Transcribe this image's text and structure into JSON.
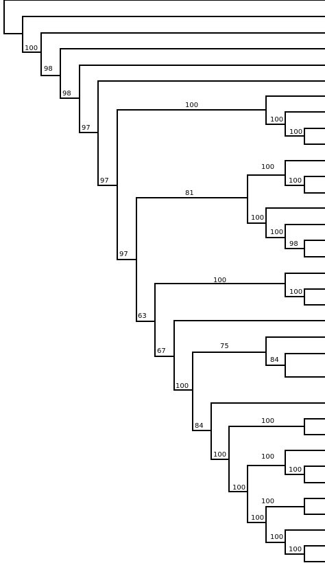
{
  "tree": {
    "line_color": "#000000",
    "supports": {
      "n33": "100",
      "n60": "98",
      "n88": "98",
      "n116": "97",
      "n143": "97",
      "n171": "97",
      "n199": "63",
      "n226": "67",
      "n254": "100",
      "n281": "84",
      "n308": "100",
      "n334": "100",
      "n361": "100",
      "n388": "100",
      "n416_1": "100",
      "n389": "81",
      "n416_2": "100",
      "n416_3": "98",
      "n389_2": "100",
      "n416_4": "100",
      "n226_2": "100",
      "n416_5": "100",
      "n416_6": "100",
      "n416_7": "100",
      "n389_3": "75",
      "n416_8": "84",
      "n361_2": "100",
      "n361_3": "100",
      "n416_9": "100",
      "n416_10": "100"
    }
  }
}
